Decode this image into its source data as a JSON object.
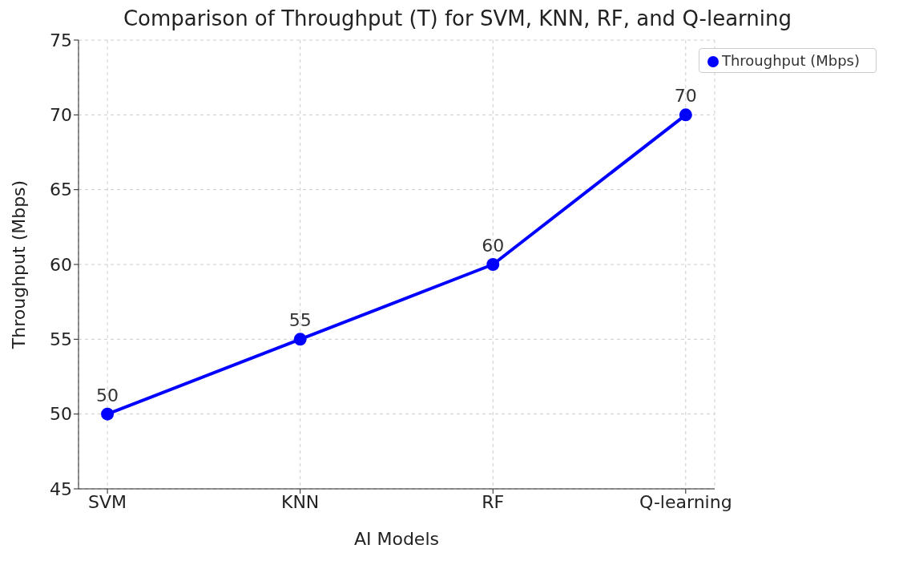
{
  "chart_data": {
    "type": "line",
    "title": "Comparison of Throughput (T) for SVM, KNN, RF, and Q-learning",
    "xlabel": "AI Models",
    "ylabel": "Throughput (Mbps)",
    "categories": [
      "SVM",
      "KNN",
      "RF",
      "Q-learning"
    ],
    "series": [
      {
        "name": "Throughput (Mbps)",
        "color": "#0000ff",
        "values": [
          50,
          55,
          60,
          70
        ]
      }
    ],
    "ylim": [
      45,
      75
    ],
    "yticks": [
      45,
      50,
      55,
      60,
      65,
      70,
      75
    ],
    "grid": true,
    "legend": "top right",
    "marker": "circle",
    "line_style": "solid",
    "data_labels": true
  }
}
